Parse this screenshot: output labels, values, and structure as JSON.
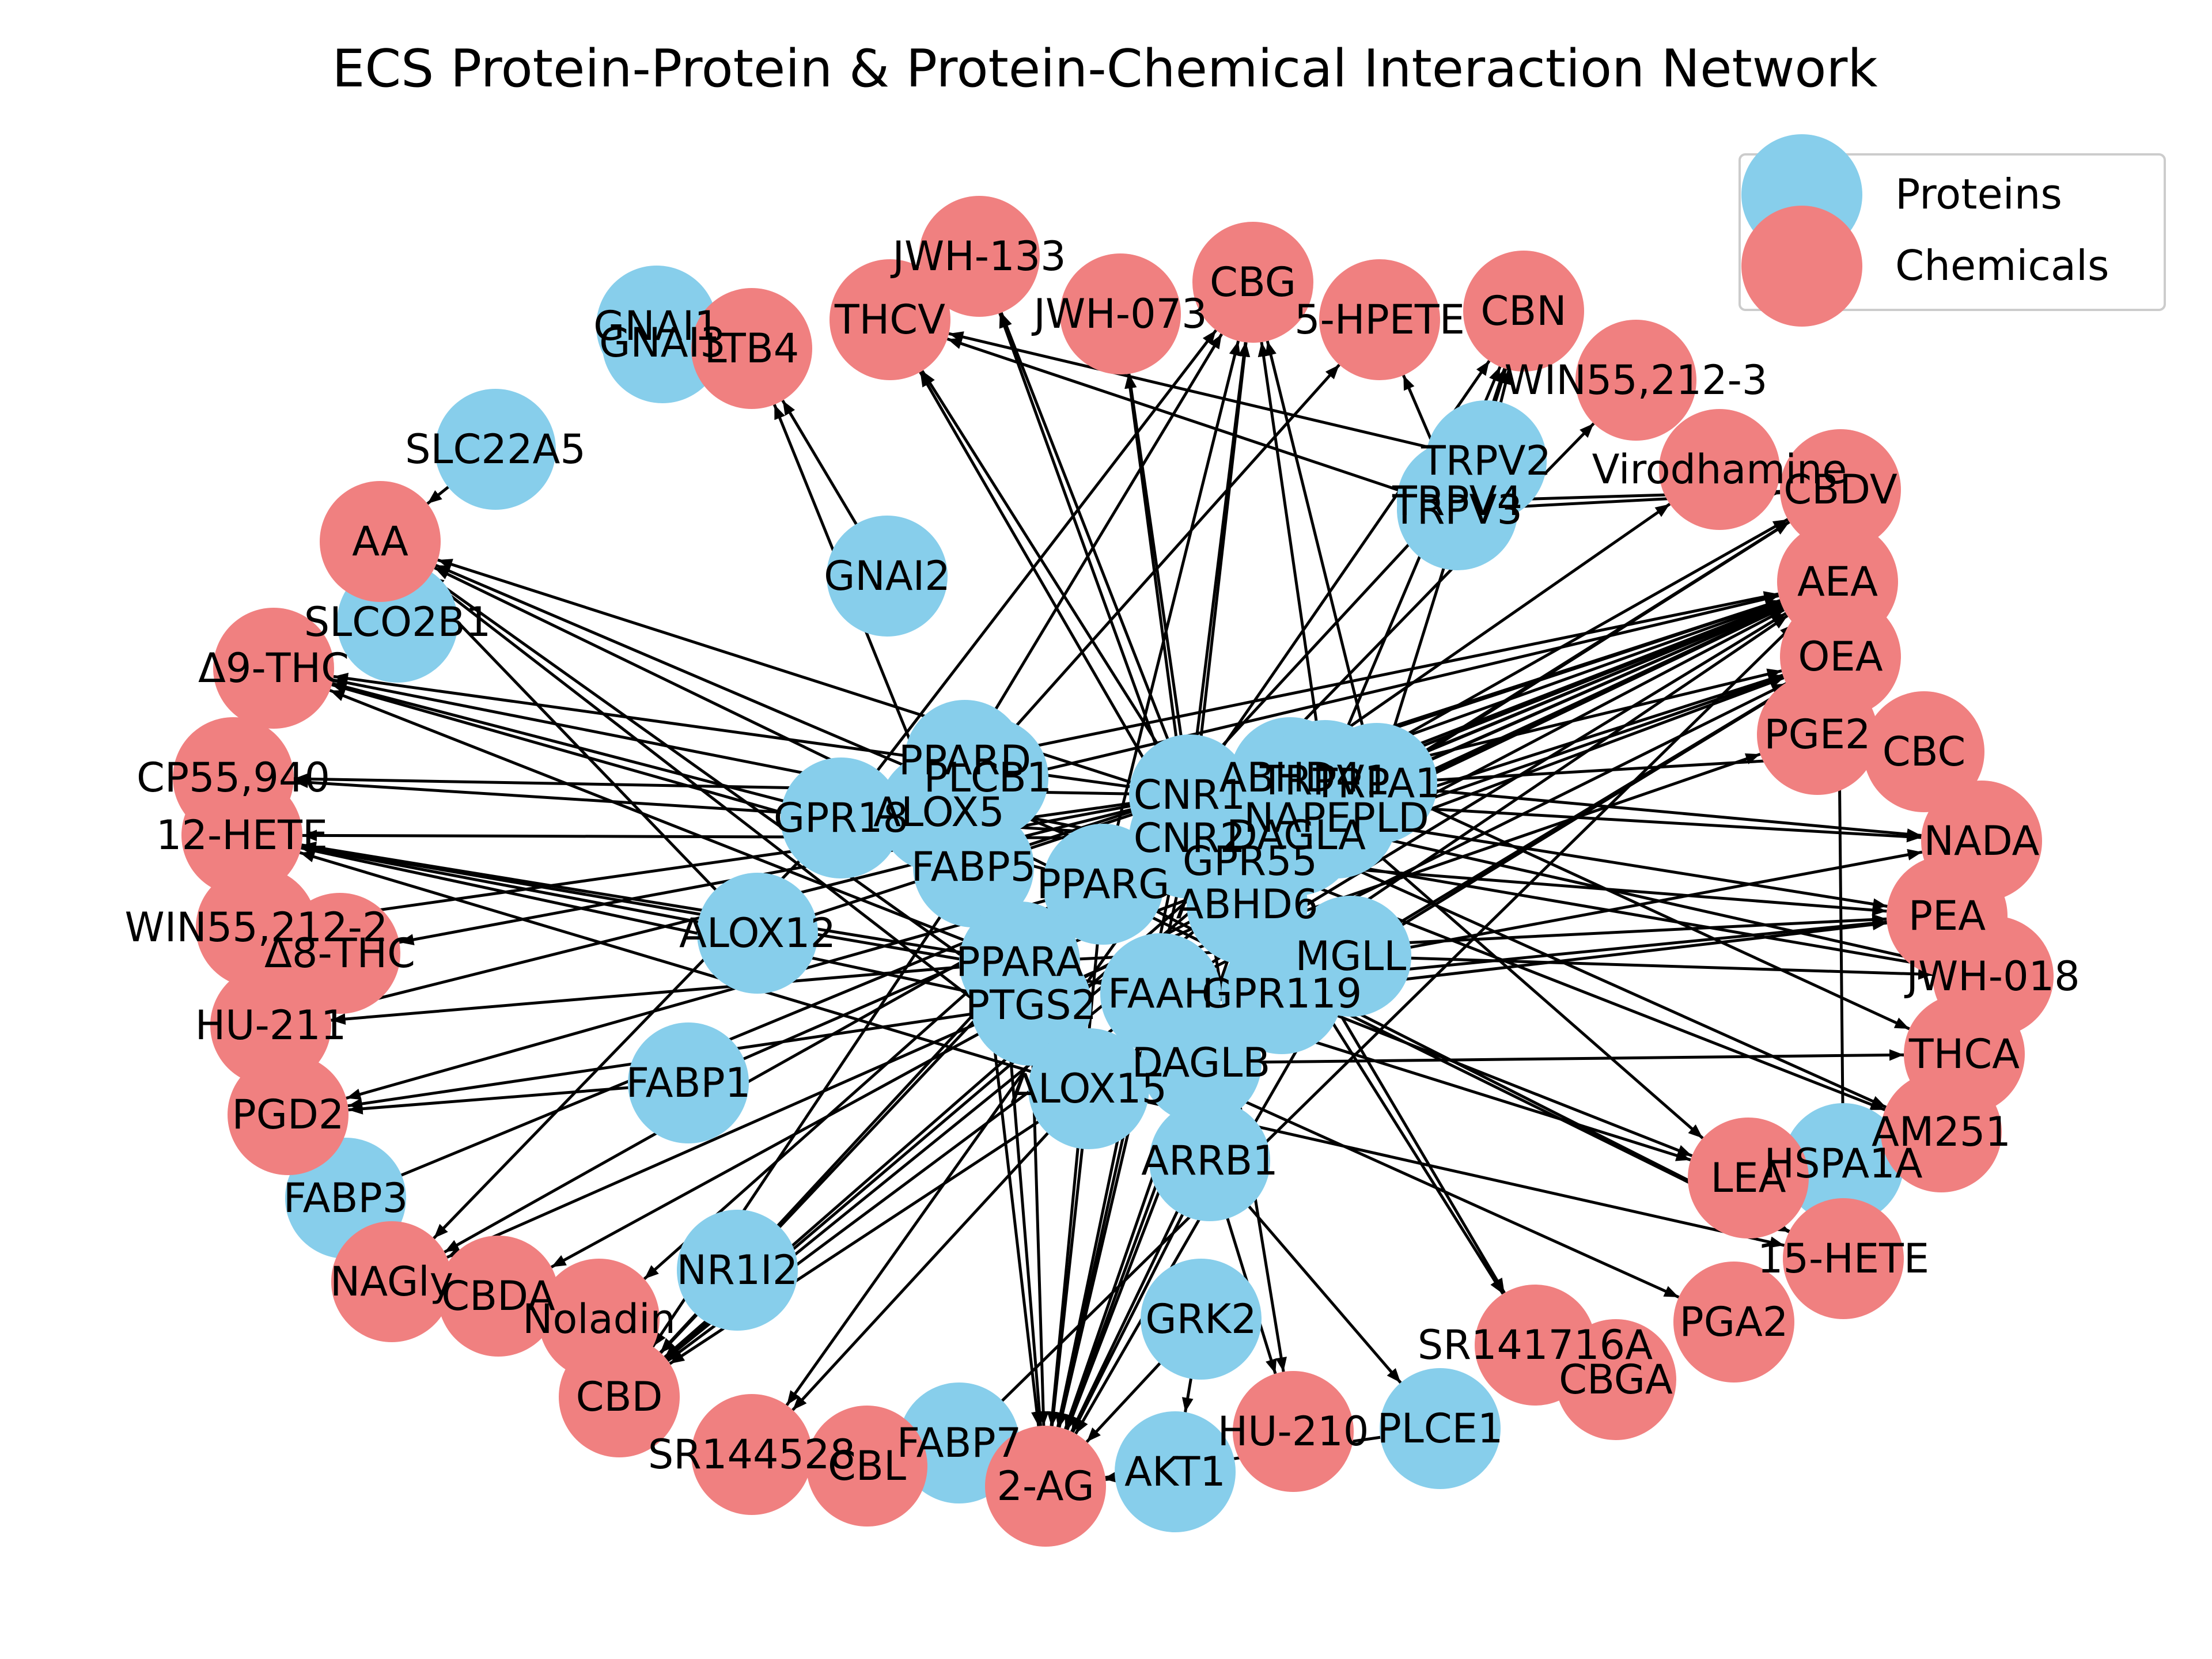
{
  "title": "ECS Protein-Protein & Protein-Chemical Interaction Network",
  "colors": {
    "protein": "#87CEEB",
    "chemical": "#F08080",
    "edge": "#000000",
    "background": "#FFFFFF"
  },
  "legend": {
    "protein_label": "Proteins",
    "chemical_label": "Chemicals"
  },
  "nodes": [
    {
      "id": "GNAI1",
      "type": "protein"
    },
    {
      "id": "GNAI3",
      "type": "protein"
    },
    {
      "id": "SLC22A5",
      "type": "protein"
    },
    {
      "id": "SLCO2B1",
      "type": "protein"
    },
    {
      "id": "GNAI2",
      "type": "protein"
    },
    {
      "id": "TRPV2",
      "type": "protein"
    },
    {
      "id": "TRPV3",
      "type": "protein"
    },
    {
      "id": "TRPV4",
      "type": "protein"
    },
    {
      "id": "PPARD",
      "type": "protein"
    },
    {
      "id": "PLCB1",
      "type": "protein"
    },
    {
      "id": "GPR18",
      "type": "protein"
    },
    {
      "id": "ALOX5",
      "type": "protein"
    },
    {
      "id": "CNR1",
      "type": "protein"
    },
    {
      "id": "ABHD4",
      "type": "protein"
    },
    {
      "id": "TRPV1",
      "type": "protein"
    },
    {
      "id": "TRPA1",
      "type": "protein"
    },
    {
      "id": "NAPEPLD",
      "type": "protein"
    },
    {
      "id": "CNR2",
      "type": "protein"
    },
    {
      "id": "DAGLA",
      "type": "protein"
    },
    {
      "id": "GPR55",
      "type": "protein"
    },
    {
      "id": "FABP5",
      "type": "protein"
    },
    {
      "id": "PPARG",
      "type": "protein"
    },
    {
      "id": "ABHD6",
      "type": "protein"
    },
    {
      "id": "ALOX12",
      "type": "protein"
    },
    {
      "id": "MGLL",
      "type": "protein"
    },
    {
      "id": "PPARA",
      "type": "protein"
    },
    {
      "id": "FAAH",
      "type": "protein"
    },
    {
      "id": "GPR119",
      "type": "protein"
    },
    {
      "id": "PTGS2",
      "type": "protein"
    },
    {
      "id": "FABP1",
      "type": "protein"
    },
    {
      "id": "DAGLB",
      "type": "protein"
    },
    {
      "id": "ALOX15",
      "type": "protein"
    },
    {
      "id": "ARRB1",
      "type": "protein"
    },
    {
      "id": "FABP3",
      "type": "protein"
    },
    {
      "id": "HSPA1A",
      "type": "protein"
    },
    {
      "id": "NR1I2",
      "type": "protein"
    },
    {
      "id": "GRK2",
      "type": "protein"
    },
    {
      "id": "FABP7",
      "type": "protein"
    },
    {
      "id": "AKT1",
      "type": "protein"
    },
    {
      "id": "PLCE1",
      "type": "protein"
    },
    {
      "id": "JWH-133",
      "type": "chemical"
    },
    {
      "id": "THCV",
      "type": "chemical"
    },
    {
      "id": "JWH-073",
      "type": "chemical"
    },
    {
      "id": "CBG",
      "type": "chemical"
    },
    {
      "id": "5-HPETE",
      "type": "chemical"
    },
    {
      "id": "CBN",
      "type": "chemical"
    },
    {
      "id": "LTB4",
      "type": "chemical"
    },
    {
      "id": "WIN55,212-3",
      "type": "chemical"
    },
    {
      "id": "Virodhamine",
      "type": "chemical"
    },
    {
      "id": "CBDV",
      "type": "chemical"
    },
    {
      "id": "AA",
      "type": "chemical"
    },
    {
      "id": "AEA",
      "type": "chemical"
    },
    {
      "id": "Δ9-THC",
      "type": "chemical"
    },
    {
      "id": "OEA",
      "type": "chemical"
    },
    {
      "id": "PGE2",
      "type": "chemical"
    },
    {
      "id": "CBC",
      "type": "chemical"
    },
    {
      "id": "CP55,940",
      "type": "chemical"
    },
    {
      "id": "12-HETE",
      "type": "chemical"
    },
    {
      "id": "NADA",
      "type": "chemical"
    },
    {
      "id": "PEA",
      "type": "chemical"
    },
    {
      "id": "WIN55,212-2",
      "type": "chemical"
    },
    {
      "id": "Δ8-THC",
      "type": "chemical"
    },
    {
      "id": "JWH-018",
      "type": "chemical"
    },
    {
      "id": "HU-211",
      "type": "chemical"
    },
    {
      "id": "THCA",
      "type": "chemical"
    },
    {
      "id": "PGD2",
      "type": "chemical"
    },
    {
      "id": "AM251",
      "type": "chemical"
    },
    {
      "id": "LEA",
      "type": "chemical"
    },
    {
      "id": "15-HETE",
      "type": "chemical"
    },
    {
      "id": "NAGly",
      "type": "chemical"
    },
    {
      "id": "CBDA",
      "type": "chemical"
    },
    {
      "id": "Noladin",
      "type": "chemical"
    },
    {
      "id": "SR141716A",
      "type": "chemical"
    },
    {
      "id": "PGA2",
      "type": "chemical"
    },
    {
      "id": "CBGA",
      "type": "chemical"
    },
    {
      "id": "CBD",
      "type": "chemical"
    },
    {
      "id": "SR144528",
      "type": "chemical"
    },
    {
      "id": "CBL",
      "type": "chemical"
    },
    {
      "id": "2-AG",
      "type": "chemical"
    },
    {
      "id": "HU-210",
      "type": "chemical"
    }
  ],
  "edges": [
    [
      "GNAI1",
      "LTB4"
    ],
    [
      "GNAI3",
      "LTB4"
    ],
    [
      "SLC22A5",
      "AA"
    ],
    [
      "SLCO2B1",
      "AA"
    ],
    [
      "GNAI2",
      "LTB4"
    ],
    [
      "TRPV2",
      "THCV"
    ],
    [
      "TRPV2",
      "CBD"
    ],
    [
      "TRPV2",
      "CBN"
    ],
    [
      "TRPV3",
      "THCV"
    ],
    [
      "TRPV3",
      "CBN"
    ],
    [
      "TRPV3",
      "CBDV"
    ],
    [
      "TRPV4",
      "CBDV"
    ],
    [
      "TRPV4",
      "5-HPETE"
    ],
    [
      "PPARD",
      "AEA"
    ],
    [
      "PPARD",
      "CBG"
    ],
    [
      "PLCB1",
      "2-AG"
    ],
    [
      "GPR18",
      "CBG"
    ],
    [
      "GPR18",
      "NAGly"
    ],
    [
      "GPR18",
      "AEA"
    ],
    [
      "ALOX5",
      "AA"
    ],
    [
      "ALOX5",
      "5-HPETE"
    ],
    [
      "ALOX5",
      "LTB4"
    ],
    [
      "ALOX5",
      "15-HETE"
    ],
    [
      "CNR1",
      "THCV"
    ],
    [
      "CNR1",
      "JWH-133"
    ],
    [
      "CNR1",
      "JWH-073"
    ],
    [
      "CNR1",
      "CBG"
    ],
    [
      "CNR1",
      "CBN"
    ],
    [
      "CNR1",
      "Δ9-THC"
    ],
    [
      "CNR1",
      "CP55,940"
    ],
    [
      "CNR1",
      "WIN55,212-2"
    ],
    [
      "CNR1",
      "Δ8-THC"
    ],
    [
      "CNR1",
      "HU-211"
    ],
    [
      "CNR1",
      "AEA"
    ],
    [
      "CNR1",
      "2-AG"
    ],
    [
      "CNR1",
      "SR141716A"
    ],
    [
      "CNR1",
      "AM251"
    ],
    [
      "CNR1",
      "JWH-018"
    ],
    [
      "CNR1",
      "NADA"
    ],
    [
      "CNR1",
      "Noladin"
    ],
    [
      "CNR1",
      "HU-210"
    ],
    [
      "CNR2",
      "JWH-133"
    ],
    [
      "CNR2",
      "THCV"
    ],
    [
      "CNR2",
      "JWH-073"
    ],
    [
      "CNR2",
      "CBG"
    ],
    [
      "CNR2",
      "12-HETE"
    ],
    [
      "CNR2",
      "CP55,940"
    ],
    [
      "CNR2",
      "SR144528"
    ],
    [
      "CNR2",
      "2-AG"
    ],
    [
      "CNR2",
      "AEA"
    ],
    [
      "CNR2",
      "JWH-018"
    ],
    [
      "CNR2",
      "WIN55,212-3"
    ],
    [
      "CNR2",
      "Virodhamine"
    ],
    [
      "ABHD4",
      "AEA"
    ],
    [
      "ABHD4",
      "NAGly"
    ],
    [
      "TRPV1",
      "AEA"
    ],
    [
      "TRPV1",
      "CBD"
    ],
    [
      "TRPV1",
      "CBDV"
    ],
    [
      "TRPV1",
      "NADA"
    ],
    [
      "TRPV1",
      "OEA"
    ],
    [
      "TRPV1",
      "CBG"
    ],
    [
      "TRPV1",
      "CBN"
    ],
    [
      "TRPA1",
      "CBC"
    ],
    [
      "TRPA1",
      "CBD"
    ],
    [
      "TRPA1",
      "CBG"
    ],
    [
      "TRPA1",
      "THCA"
    ],
    [
      "TRPA1",
      "CBDV"
    ],
    [
      "TRPA1",
      "CBN"
    ],
    [
      "TRPA1",
      "AEA"
    ],
    [
      "NAPEPLD",
      "AEA"
    ],
    [
      "NAPEPLD",
      "OEA"
    ],
    [
      "NAPEPLD",
      "PEA"
    ],
    [
      "NAPEPLD",
      "LEA"
    ],
    [
      "DAGLA",
      "2-AG"
    ],
    [
      "DAGLA",
      "AA"
    ],
    [
      "GPR55",
      "Δ9-THC"
    ],
    [
      "GPR55",
      "CBD"
    ],
    [
      "GPR55",
      "AEA"
    ],
    [
      "GPR55",
      "OEA"
    ],
    [
      "GPR55",
      "PEA"
    ],
    [
      "GPR55",
      "CBDV"
    ],
    [
      "GPR55",
      "AM251"
    ],
    [
      "GPR55",
      "SR141716A"
    ],
    [
      "FABP5",
      "AEA"
    ],
    [
      "FABP5",
      "2-AG"
    ],
    [
      "FABP5",
      "Δ9-THC"
    ],
    [
      "FABP5",
      "CBD"
    ],
    [
      "PPARG",
      "Δ9-THC"
    ],
    [
      "PPARG",
      "CBD"
    ],
    [
      "PPARG",
      "AEA"
    ],
    [
      "PPARG",
      "2-AG"
    ],
    [
      "PPARG",
      "CBG"
    ],
    [
      "PPARG",
      "PGD2"
    ],
    [
      "PPARG",
      "15-HETE"
    ],
    [
      "ABHD6",
      "2-AG"
    ],
    [
      "ABHD6",
      "NAGly"
    ],
    [
      "ALOX12",
      "AA"
    ],
    [
      "ALOX12",
      "12-HETE"
    ],
    [
      "ALOX12",
      "AEA"
    ],
    [
      "MGLL",
      "2-AG"
    ],
    [
      "MGLL",
      "AA"
    ],
    [
      "MGLL",
      "OEA"
    ],
    [
      "MGLL",
      "JWH-018"
    ],
    [
      "PPARA",
      "OEA"
    ],
    [
      "PPARA",
      "PEA"
    ],
    [
      "PPARA",
      "AEA"
    ],
    [
      "PPARA",
      "Δ9-THC"
    ],
    [
      "PPARA",
      "12-HETE"
    ],
    [
      "PPARA",
      "HU-211"
    ],
    [
      "FAAH",
      "AEA"
    ],
    [
      "FAAH",
      "OEA"
    ],
    [
      "FAAH",
      "PEA"
    ],
    [
      "FAAH",
      "2-AG"
    ],
    [
      "FAAH",
      "LEA"
    ],
    [
      "FAAH",
      "NADA"
    ],
    [
      "FAAH",
      "CBD"
    ],
    [
      "FAAH",
      "12-HETE"
    ],
    [
      "GPR119",
      "OEA"
    ],
    [
      "GPR119",
      "PEA"
    ],
    [
      "GPR119",
      "LEA"
    ],
    [
      "GPR119",
      "2-AG"
    ],
    [
      "PTGS2",
      "AA"
    ],
    [
      "PTGS2",
      "PGE2"
    ],
    [
      "PTGS2",
      "PGD2"
    ],
    [
      "PTGS2",
      "PGA2"
    ],
    [
      "PTGS2",
      "AEA"
    ],
    [
      "PTGS2",
      "2-AG"
    ],
    [
      "PTGS2",
      "12-HETE"
    ],
    [
      "PTGS2",
      "CBDA"
    ],
    [
      "FABP1",
      "AEA"
    ],
    [
      "FABP1",
      "PGD2"
    ],
    [
      "DAGLB",
      "2-AG"
    ],
    [
      "DAGLB",
      "THCA"
    ],
    [
      "ALOX15",
      "AA"
    ],
    [
      "ALOX15",
      "15-HETE"
    ],
    [
      "ALOX15",
      "AEA"
    ],
    [
      "ALOX15",
      "12-HETE"
    ],
    [
      "ALOX15",
      "2-AG"
    ],
    [
      "ALOX15",
      "SR144528"
    ],
    [
      "ALOX15",
      "CBD"
    ],
    [
      "ARRB1",
      "2-AG"
    ],
    [
      "ARRB1",
      "HU-210"
    ],
    [
      "ARRB1",
      "PLCE1"
    ],
    [
      "FABP3",
      "AEA"
    ],
    [
      "HSPA1A",
      "AEA"
    ],
    [
      "NR1I2",
      "CBD"
    ],
    [
      "GRK2",
      "2-AG"
    ],
    [
      "GRK2",
      "AKT1"
    ],
    [
      "FABP7",
      "AEA"
    ],
    [
      "AKT1",
      "2-AG"
    ],
    [
      "PLCE1",
      "2-AG"
    ]
  ]
}
